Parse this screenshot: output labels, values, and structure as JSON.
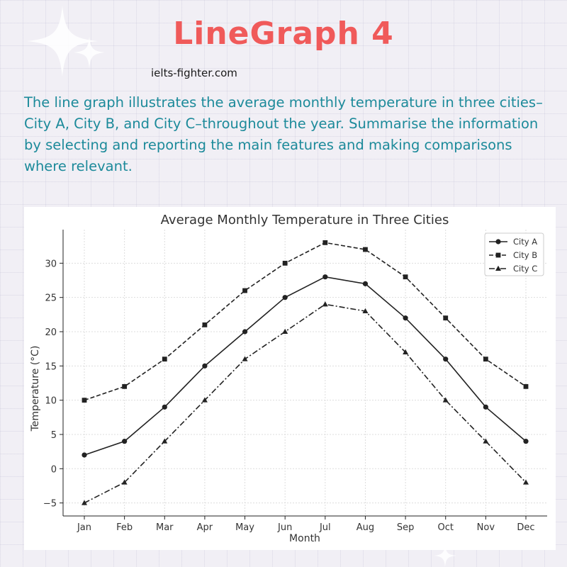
{
  "header": {
    "title": "LineGraph 4",
    "site": "ielts-fighter.com"
  },
  "prompt": {
    "text": "The line graph illustrates the average monthly temperature in three cities–City A, City B, and City C–throughout the year. Summarise the information by selecting and reporting the main features and making comparisons where relevant."
  },
  "colors": {
    "title": "#f05a5a",
    "prompt": "#1c8a9a",
    "lines": "#222222"
  },
  "chart_data": {
    "type": "line",
    "title": "Average Monthly Temperature in Three Cities",
    "xlabel": "Month",
    "ylabel": "Temperature (°C)",
    "categories": [
      "Jan",
      "Feb",
      "Mar",
      "Apr",
      "May",
      "Jun",
      "Jul",
      "Aug",
      "Sep",
      "Oct",
      "Nov",
      "Dec"
    ],
    "ylim": [
      -6.9,
      34.9
    ],
    "yticks": [
      -5,
      0,
      5,
      10,
      15,
      20,
      25,
      30
    ],
    "yticklabels": [
      "−5",
      "0",
      "5",
      "10",
      "15",
      "20",
      "25",
      "30"
    ],
    "grid": true,
    "legend_position": "top-right",
    "series": [
      {
        "name": "City A",
        "line_style": "solid",
        "marker": "circle",
        "values": [
          2,
          4,
          9,
          15,
          20,
          25,
          28,
          27,
          22,
          16,
          9,
          4
        ]
      },
      {
        "name": "City B",
        "line_style": "dashed",
        "marker": "square",
        "values": [
          10,
          12,
          16,
          21,
          26,
          30,
          33,
          32,
          28,
          22,
          16,
          12
        ]
      },
      {
        "name": "City C",
        "line_style": "dashdot",
        "marker": "triangle",
        "values": [
          -5,
          -2,
          4,
          10,
          16,
          20,
          24,
          23,
          17,
          10,
          4,
          -2
        ]
      }
    ]
  }
}
